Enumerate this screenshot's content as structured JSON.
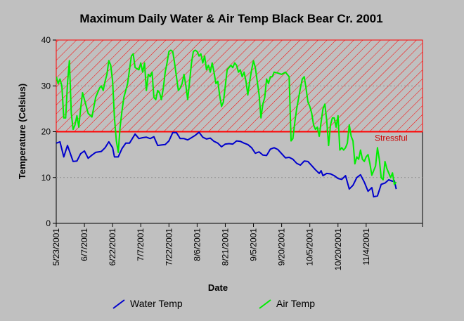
{
  "chart_data": {
    "type": "line",
    "title": "Maximum Daily Water & Air Temp Black Bear Cr. 2001",
    "xlabel": "Date",
    "ylabel": "Temperature (Celsius)",
    "ylim": [
      0,
      40
    ],
    "yticks": [
      0,
      10,
      20,
      30,
      40
    ],
    "xlim": [
      "5/23/2001",
      "12/4/2001"
    ],
    "xticks": [
      "5/23/2001",
      "6/7/2001",
      "6/22/2001",
      "7/7/2001",
      "7/22/2001",
      "8/6/2001",
      "8/21/2001",
      "9/5/2001",
      "9/20/2001",
      "10/5/2001",
      "10/20/2001",
      "11/4/2001"
    ],
    "grid": "horizontal dashed",
    "stress_zone": {
      "from": 20,
      "to": 40,
      "label": "Stressful",
      "color": "#ff0000",
      "hatch": true
    },
    "legend_position": "bottom",
    "series": [
      {
        "name": "Water Temp",
        "color": "#0000cc",
        "points": [
          [
            "5/23/2001",
            17.5
          ],
          [
            "5/25/2001",
            17.8
          ],
          [
            "5/27/2001",
            14.5
          ],
          [
            "5/29/2001",
            17.0
          ],
          [
            "6/1/2001",
            13.5
          ],
          [
            "6/3/2001",
            13.6
          ],
          [
            "6/5/2001",
            15.2
          ],
          [
            "6/7/2001",
            15.8
          ],
          [
            "6/9/2001",
            14.2
          ],
          [
            "6/11/2001",
            14.9
          ],
          [
            "6/13/2001",
            15.5
          ],
          [
            "6/16/2001",
            15.7
          ],
          [
            "6/18/2001",
            16.5
          ],
          [
            "6/20/2001",
            17.8
          ],
          [
            "6/22/2001",
            16.5
          ],
          [
            "6/23/2001",
            14.5
          ],
          [
            "6/25/2001",
            14.5
          ],
          [
            "6/27/2001",
            16.3
          ],
          [
            "6/29/2001",
            17.5
          ],
          [
            "7/1/2001",
            17.5
          ],
          [
            "7/4/2001",
            19.5
          ],
          [
            "7/6/2001",
            18.5
          ],
          [
            "7/8/2001",
            18.7
          ],
          [
            "7/10/2001",
            18.8
          ],
          [
            "7/12/2001",
            18.5
          ],
          [
            "7/14/2001",
            18.9
          ],
          [
            "7/16/2001",
            17.0
          ],
          [
            "7/18/2001",
            17.1
          ],
          [
            "7/20/2001",
            17.2
          ],
          [
            "7/22/2001",
            18.0
          ],
          [
            "7/24/2001",
            19.8
          ],
          [
            "7/26/2001",
            19.8
          ],
          [
            "7/28/2001",
            18.5
          ],
          [
            "7/30/2001",
            18.5
          ],
          [
            "8/1/2001",
            18.2
          ],
          [
            "8/3/2001",
            18.7
          ],
          [
            "8/5/2001",
            19.2
          ],
          [
            "8/7/2001",
            19.9
          ],
          [
            "8/9/2001",
            18.8
          ],
          [
            "8/11/2001",
            18.4
          ],
          [
            "8/13/2001",
            18.6
          ],
          [
            "8/15/2001",
            17.9
          ],
          [
            "8/17/2001",
            17.5
          ],
          [
            "8/19/2001",
            16.7
          ],
          [
            "8/21/2001",
            17.3
          ],
          [
            "8/23/2001",
            17.4
          ],
          [
            "8/25/2001",
            17.3
          ],
          [
            "8/27/2001",
            18.0
          ],
          [
            "8/29/2001",
            17.9
          ],
          [
            "8/31/2001",
            17.5
          ],
          [
            "9/2/2001",
            17.2
          ],
          [
            "9/4/2001",
            16.5
          ],
          [
            "9/6/2001",
            15.3
          ],
          [
            "9/8/2001",
            15.6
          ],
          [
            "9/10/2001",
            14.9
          ],
          [
            "9/12/2001",
            14.8
          ],
          [
            "9/14/2001",
            16.2
          ],
          [
            "9/16/2001",
            16.5
          ],
          [
            "9/18/2001",
            16.1
          ],
          [
            "9/20/2001",
            15.2
          ],
          [
            "9/22/2001",
            14.3
          ],
          [
            "9/24/2001",
            14.4
          ],
          [
            "9/26/2001",
            14.0
          ],
          [
            "9/28/2001",
            13.1
          ],
          [
            "9/30/2001",
            12.7
          ],
          [
            "10/2/2001",
            13.6
          ],
          [
            "10/4/2001",
            13.5
          ],
          [
            "10/6/2001",
            12.6
          ],
          [
            "10/8/2001",
            11.7
          ],
          [
            "10/10/2001",
            10.9
          ],
          [
            "10/11/2001",
            11.5
          ],
          [
            "10/12/2001",
            10.4
          ],
          [
            "10/14/2001",
            10.9
          ],
          [
            "10/16/2001",
            10.8
          ],
          [
            "10/18/2001",
            10.4
          ],
          [
            "10/20/2001",
            9.8
          ],
          [
            "10/22/2001",
            9.6
          ],
          [
            "10/24/2001",
            10.4
          ],
          [
            "10/26/2001",
            7.5
          ],
          [
            "10/28/2001",
            8.3
          ],
          [
            "10/30/2001",
            10.0
          ],
          [
            "11/1/2001",
            10.6
          ],
          [
            "11/3/2001",
            9.0
          ],
          [
            "11/5/2001",
            7.0
          ],
          [
            "11/7/2001",
            7.8
          ],
          [
            "11/8/2001",
            5.8
          ],
          [
            "11/10/2001",
            6.0
          ],
          [
            "11/12/2001",
            8.5
          ],
          [
            "11/14/2001",
            8.8
          ],
          [
            "11/16/2001",
            9.5
          ],
          [
            "11/18/2001",
            9.2
          ],
          [
            "11/19/2001",
            9.3
          ],
          [
            "11/20/2001",
            7.5
          ]
        ]
      },
      {
        "name": "Air Temp",
        "color": "#00ee00",
        "points": [
          [
            "5/23/2001",
            32.0
          ],
          [
            "5/24/2001",
            30.5
          ],
          [
            "5/25/2001",
            31.5
          ],
          [
            "5/26/2001",
            30.0
          ],
          [
            "5/27/2001",
            23.0
          ],
          [
            "5/28/2001",
            23.0
          ],
          [
            "5/29/2001",
            30.5
          ],
          [
            "5/30/2001",
            35.5
          ],
          [
            "5/31/2001",
            24.0
          ],
          [
            "6/1/2001",
            20.5
          ],
          [
            "6/2/2001",
            21.5
          ],
          [
            "6/3/2001",
            23.5
          ],
          [
            "6/4/2001",
            21.0
          ],
          [
            "6/5/2001",
            25.0
          ],
          [
            "6/6/2001",
            28.5
          ],
          [
            "6/7/2001",
            27.0
          ],
          [
            "6/9/2001",
            24.0
          ],
          [
            "6/11/2001",
            23.2
          ],
          [
            "6/13/2001",
            27.5
          ],
          [
            "6/15/2001",
            29.5
          ],
          [
            "6/16/2001",
            30.0
          ],
          [
            "6/17/2001",
            29.0
          ],
          [
            "6/18/2001",
            31.0
          ],
          [
            "6/19/2001",
            32.5
          ],
          [
            "6/20/2001",
            35.5
          ],
          [
            "6/21/2001",
            34.5
          ],
          [
            "6/22/2001",
            31.0
          ],
          [
            "6/23/2001",
            23.0
          ],
          [
            "6/24/2001",
            18.0
          ],
          [
            "6/25/2001",
            15.5
          ],
          [
            "6/26/2001",
            21.0
          ],
          [
            "6/27/2001",
            24.5
          ],
          [
            "6/28/2001",
            27.5
          ],
          [
            "6/30/2001",
            30.5
          ],
          [
            "7/2/2001",
            36.5
          ],
          [
            "7/3/2001",
            37.0
          ],
          [
            "7/4/2001",
            34.0
          ],
          [
            "7/6/2001",
            33.5
          ],
          [
            "7/7/2001",
            35.0
          ],
          [
            "7/8/2001",
            33.0
          ],
          [
            "7/9/2001",
            35.0
          ],
          [
            "7/10/2001",
            29.0
          ],
          [
            "7/11/2001",
            32.5
          ],
          [
            "7/12/2001",
            32.0
          ],
          [
            "7/13/2001",
            33.0
          ],
          [
            "7/14/2001",
            27.5
          ],
          [
            "7/15/2001",
            27.0
          ],
          [
            "7/16/2001",
            29.0
          ],
          [
            "7/17/2001",
            28.5
          ],
          [
            "7/18/2001",
            27.0
          ],
          [
            "7/19/2001",
            29.5
          ],
          [
            "7/20/2001",
            33.0
          ],
          [
            "7/21/2001",
            35.0
          ],
          [
            "7/22/2001",
            37.5
          ],
          [
            "7/23/2001",
            37.8
          ],
          [
            "7/24/2001",
            37.5
          ],
          [
            "7/25/2001",
            35.0
          ],
          [
            "7/26/2001",
            32.0
          ],
          [
            "7/27/2001",
            29.0
          ],
          [
            "7/28/2001",
            29.5
          ],
          [
            "7/29/2001",
            30.5
          ],
          [
            "7/30/2001",
            32.5
          ],
          [
            "7/31/2001",
            30.0
          ],
          [
            "8/1/2001",
            27.0
          ],
          [
            "8/2/2001",
            31.0
          ],
          [
            "8/3/2001",
            35.0
          ],
          [
            "8/4/2001",
            37.5
          ],
          [
            "8/5/2001",
            37.8
          ],
          [
            "8/6/2001",
            37.5
          ],
          [
            "8/7/2001",
            36.5
          ],
          [
            "8/8/2001",
            37.0
          ],
          [
            "8/9/2001",
            35.0
          ],
          [
            "8/10/2001",
            36.5
          ],
          [
            "8/11/2001",
            33.5
          ],
          [
            "8/12/2001",
            34.5
          ],
          [
            "8/13/2001",
            33.0
          ],
          [
            "8/14/2001",
            35.0
          ],
          [
            "8/15/2001",
            33.0
          ],
          [
            "8/16/2001",
            30.5
          ],
          [
            "8/17/2001",
            31.0
          ],
          [
            "8/18/2001",
            28.0
          ],
          [
            "8/19/2001",
            25.5
          ],
          [
            "8/20/2001",
            26.5
          ],
          [
            "8/21/2001",
            30.0
          ],
          [
            "8/22/2001",
            33.5
          ],
          [
            "8/23/2001",
            34.0
          ],
          [
            "8/24/2001",
            34.5
          ],
          [
            "8/25/2001",
            34.0
          ],
          [
            "8/26/2001",
            35.0
          ],
          [
            "8/27/2001",
            34.5
          ],
          [
            "8/28/2001",
            33.0
          ],
          [
            "8/29/2001",
            33.5
          ],
          [
            "8/30/2001",
            32.0
          ],
          [
            "8/31/2001",
            33.0
          ],
          [
            "9/1/2001",
            31.0
          ],
          [
            "9/2/2001",
            28.0
          ],
          [
            "9/3/2001",
            31.0
          ],
          [
            "9/4/2001",
            33.5
          ],
          [
            "9/5/2001",
            35.5
          ],
          [
            "9/6/2001",
            34.0
          ],
          [
            "9/7/2001",
            31.0
          ],
          [
            "9/8/2001",
            28.0
          ],
          [
            "9/9/2001",
            23.0
          ],
          [
            "9/10/2001",
            26.0
          ],
          [
            "9/11/2001",
            27.5
          ],
          [
            "9/12/2001",
            31.5
          ],
          [
            "9/13/2001",
            30.5
          ],
          [
            "9/14/2001",
            32.0
          ],
          [
            "9/15/2001",
            32.0
          ],
          [
            "9/16/2001",
            33.0
          ],
          [
            "9/18/2001",
            32.8
          ],
          [
            "9/20/2001",
            32.5
          ],
          [
            "9/22/2001",
            33.0
          ],
          [
            "9/24/2001",
            32.0
          ],
          [
            "9/25/2001",
            18.0
          ],
          [
            "9/26/2001",
            18.5
          ],
          [
            "9/27/2001",
            22.0
          ],
          [
            "9/28/2001",
            25.0
          ],
          [
            "9/30/2001",
            29.5
          ],
          [
            "10/1/2001",
            31.5
          ],
          [
            "10/2/2001",
            32.0
          ],
          [
            "10/3/2001",
            29.5
          ],
          [
            "10/4/2001",
            26.5
          ],
          [
            "10/5/2001",
            25.5
          ],
          [
            "10/6/2001",
            24.0
          ],
          [
            "10/7/2001",
            21.5
          ],
          [
            "10/8/2001",
            20.5
          ],
          [
            "10/9/2001",
            21.0
          ],
          [
            "10/10/2001",
            19.0
          ],
          [
            "10/11/2001",
            22.0
          ],
          [
            "10/12/2001",
            25.0
          ],
          [
            "10/13/2001",
            26.0
          ],
          [
            "10/14/2001",
            22.5
          ],
          [
            "10/15/2001",
            17.0
          ],
          [
            "10/16/2001",
            21.5
          ],
          [
            "10/17/2001",
            23.0
          ],
          [
            "10/18/2001",
            23.0
          ],
          [
            "10/19/2001",
            21.0
          ],
          [
            "10/20/2001",
            23.5
          ],
          [
            "10/21/2001",
            16.0
          ],
          [
            "10/22/2001",
            16.5
          ],
          [
            "10/23/2001",
            16.0
          ],
          [
            "10/24/2001",
            16.5
          ],
          [
            "10/25/2001",
            17.5
          ],
          [
            "10/26/2001",
            21.5
          ],
          [
            "10/27/2001",
            19.0
          ],
          [
            "10/28/2001",
            18.0
          ],
          [
            "10/29/2001",
            13.0
          ],
          [
            "10/30/2001",
            14.5
          ],
          [
            "10/31/2001",
            14.0
          ],
          [
            "11/1/2001",
            16.0
          ],
          [
            "11/2/2001",
            14.0
          ],
          [
            "11/3/2001",
            13.5
          ],
          [
            "11/4/2001",
            14.5
          ],
          [
            "11/5/2001",
            15.0
          ],
          [
            "11/6/2001",
            13.0
          ],
          [
            "11/7/2001",
            10.5
          ],
          [
            "11/8/2001",
            11.5
          ],
          [
            "11/9/2001",
            12.5
          ],
          [
            "11/10/2001",
            16.5
          ],
          [
            "11/11/2001",
            14.0
          ],
          [
            "11/12/2001",
            10.0
          ],
          [
            "11/13/2001",
            9.5
          ],
          [
            "11/14/2001",
            13.5
          ],
          [
            "11/15/2001",
            12.0
          ],
          [
            "11/16/2001",
            11.0
          ],
          [
            "11/17/2001",
            10.0
          ],
          [
            "11/18/2001",
            11.0
          ],
          [
            "11/19/2001",
            8.5
          ],
          [
            "11/20/2001",
            9.0
          ]
        ]
      }
    ]
  }
}
